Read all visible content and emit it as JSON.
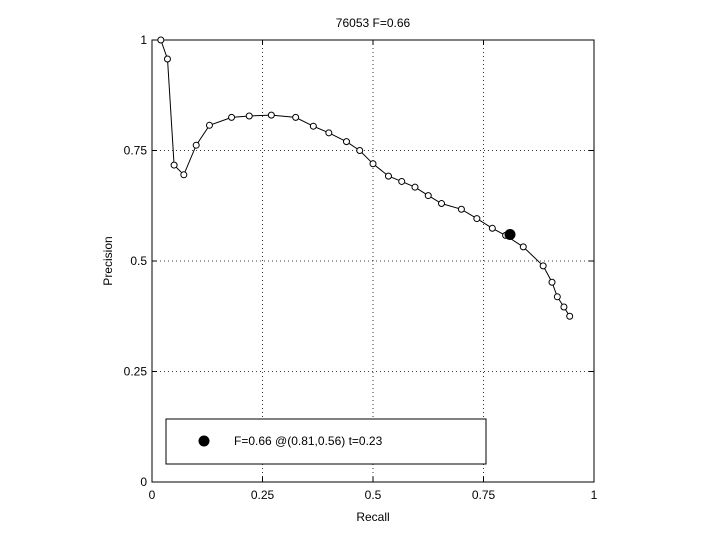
{
  "chart_data": {
    "type": "line",
    "title": "76053 F=0.66",
    "xlabel": "Recall",
    "ylabel": "Precision",
    "xlim": [
      0,
      1
    ],
    "ylim": [
      0,
      1
    ],
    "grid": true,
    "xticks": [
      {
        "value": 0,
        "label": "0"
      },
      {
        "value": 0.25,
        "label": "0.25"
      },
      {
        "value": 0.5,
        "label": "0.5"
      },
      {
        "value": 0.75,
        "label": "0.75"
      },
      {
        "value": 1,
        "label": "1"
      }
    ],
    "yticks": [
      {
        "value": 0,
        "label": "0"
      },
      {
        "value": 0.25,
        "label": "0.25"
      },
      {
        "value": 0.5,
        "label": "0.5"
      },
      {
        "value": 0.75,
        "label": "0.75"
      },
      {
        "value": 1,
        "label": "1"
      }
    ],
    "series": [
      {
        "points": [
          [
            0.02,
            1.0
          ],
          [
            0.035,
            0.957
          ],
          [
            0.05,
            0.717
          ],
          [
            0.072,
            0.695
          ],
          [
            0.1,
            0.762
          ],
          [
            0.13,
            0.807
          ],
          [
            0.18,
            0.825
          ],
          [
            0.22,
            0.828
          ],
          [
            0.27,
            0.83
          ],
          [
            0.325,
            0.825
          ],
          [
            0.365,
            0.805
          ],
          [
            0.4,
            0.79
          ],
          [
            0.44,
            0.77
          ],
          [
            0.47,
            0.75
          ],
          [
            0.5,
            0.72
          ],
          [
            0.535,
            0.692
          ],
          [
            0.565,
            0.68
          ],
          [
            0.595,
            0.667
          ],
          [
            0.625,
            0.648
          ],
          [
            0.655,
            0.63
          ],
          [
            0.7,
            0.617
          ],
          [
            0.735,
            0.596
          ],
          [
            0.77,
            0.574
          ],
          [
            0.8,
            0.558
          ],
          [
            0.84,
            0.532
          ],
          [
            0.885,
            0.489
          ],
          [
            0.905,
            0.452
          ],
          [
            0.917,
            0.419
          ],
          [
            0.932,
            0.396
          ],
          [
            0.945,
            0.375
          ]
        ]
      }
    ],
    "highlight": {
      "x": 0.81,
      "y": 0.56
    },
    "legend": {
      "position": "bottom-left",
      "entries": [
        {
          "label": "F=0.66 @(0.81,0.56) t=0.23",
          "marker": "filled-circle"
        }
      ]
    },
    "colors": {
      "line": "#000000",
      "grid": "#000000",
      "background": "#ffffff"
    }
  }
}
